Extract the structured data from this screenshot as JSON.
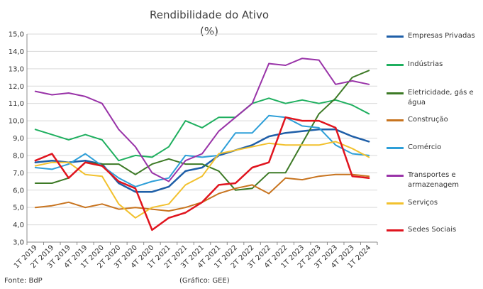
{
  "chart_data": {
    "type": "line",
    "title": "Rendibilidade do Ativo",
    "subtitle": "(%)",
    "ylim": [
      3.0,
      15.0
    ],
    "yticks": [
      "3,0",
      "4,0",
      "5,0",
      "6,0",
      "7,0",
      "8,0",
      "9,0",
      "10,0",
      "11,0",
      "12,0",
      "13,0",
      "14,0",
      "15,0"
    ],
    "categories": [
      "1T 2019",
      "2T 2019",
      "3T 2019",
      "4T 2019",
      "1T 2020",
      "2T 2020",
      "3T 2020",
      "4T 2020",
      "1T 2021",
      "2T 2021",
      "3T 2021",
      "4T 2021",
      "1T 2022",
      "2T 2022",
      "3T 2022",
      "4T 2022",
      "1T 2023",
      "2T 2023",
      "3T 2023",
      "4T 2023",
      "1T 2024"
    ],
    "series": [
      {
        "name": "Empresas Privadas",
        "color": "#1F5FA8",
        "width": 2.5,
        "values": [
          7.6,
          7.7,
          7.6,
          7.7,
          7.5,
          6.4,
          5.9,
          5.9,
          6.2,
          7.1,
          7.3,
          8.0,
          8.3,
          8.6,
          9.1,
          9.3,
          9.4,
          9.5,
          9.5,
          9.1,
          8.8
        ]
      },
      {
        "name": "Indústrias",
        "color": "#1FAF5F",
        "width": 2,
        "values": [
          9.5,
          9.2,
          8.9,
          9.2,
          8.9,
          7.7,
          8.0,
          7.9,
          8.5,
          10.0,
          9.6,
          10.2,
          10.2,
          11.0,
          11.3,
          11.0,
          11.2,
          11.0,
          11.2,
          10.9,
          10.4
        ]
      },
      {
        "name": "Eletricidade, gás e água",
        "color": "#3D7A26",
        "width": 2,
        "values": [
          6.4,
          6.4,
          6.7,
          7.6,
          7.5,
          7.5,
          6.9,
          7.5,
          7.8,
          7.5,
          7.5,
          7.1,
          6.0,
          6.1,
          7.0,
          7.0,
          8.7,
          10.4,
          11.3,
          12.5,
          12.9
        ]
      },
      {
        "name": "Construção",
        "color": "#C8741F",
        "width": 2,
        "values": [
          5.0,
          5.1,
          5.3,
          5.0,
          5.2,
          4.9,
          5.0,
          4.9,
          4.8,
          5.0,
          5.3,
          5.8,
          6.1,
          6.3,
          5.8,
          6.7,
          6.6,
          6.8,
          6.9,
          6.9,
          6.8
        ]
      },
      {
        "name": "Comércio",
        "color": "#2E9FD8",
        "width": 2,
        "values": [
          7.3,
          7.2,
          7.5,
          8.1,
          7.4,
          6.7,
          6.2,
          6.5,
          6.7,
          8.0,
          7.9,
          8.0,
          9.3,
          9.3,
          10.3,
          10.2,
          9.7,
          9.6,
          8.6,
          8.1,
          8.0
        ]
      },
      {
        "name": "Transportes e armazenagem",
        "color": "#9933A8",
        "width": 2,
        "values": [
          11.7,
          11.5,
          11.6,
          11.4,
          11.0,
          9.5,
          8.5,
          7.0,
          6.5,
          7.7,
          8.1,
          9.4,
          10.2,
          11.0,
          13.3,
          13.2,
          13.6,
          13.5,
          12.1,
          12.3,
          12.1
        ]
      },
      {
        "name": "Serviços",
        "color": "#F2C12E",
        "width": 2,
        "values": [
          7.4,
          7.6,
          7.6,
          6.9,
          6.8,
          5.2,
          4.4,
          5.0,
          5.2,
          6.3,
          6.8,
          8.1,
          8.3,
          8.5,
          8.7,
          8.6,
          8.6,
          8.6,
          8.8,
          8.4,
          7.9
        ]
      },
      {
        "name": "Sedes Sociais",
        "color": "#E0141E",
        "width": 2.5,
        "values": [
          7.7,
          8.1,
          6.7,
          7.6,
          7.4,
          6.5,
          6.1,
          3.7,
          4.4,
          4.7,
          5.3,
          6.3,
          6.4,
          7.3,
          7.6,
          10.2,
          10.0,
          10.0,
          9.6,
          6.8,
          6.7
        ]
      }
    ],
    "legend_labels": [
      [
        "Empresas Privadas"
      ],
      [
        "Indústrias"
      ],
      [
        "Eletricidade, gás e",
        "água"
      ],
      [
        "Construção"
      ],
      [
        "Comércio"
      ],
      [
        "Transportes e",
        "armazenagem"
      ],
      [
        "Serviços"
      ],
      [
        "Sedes Sociais"
      ]
    ],
    "source": "Fonte: BdP",
    "credit": "(Gráfico: GEE)"
  }
}
